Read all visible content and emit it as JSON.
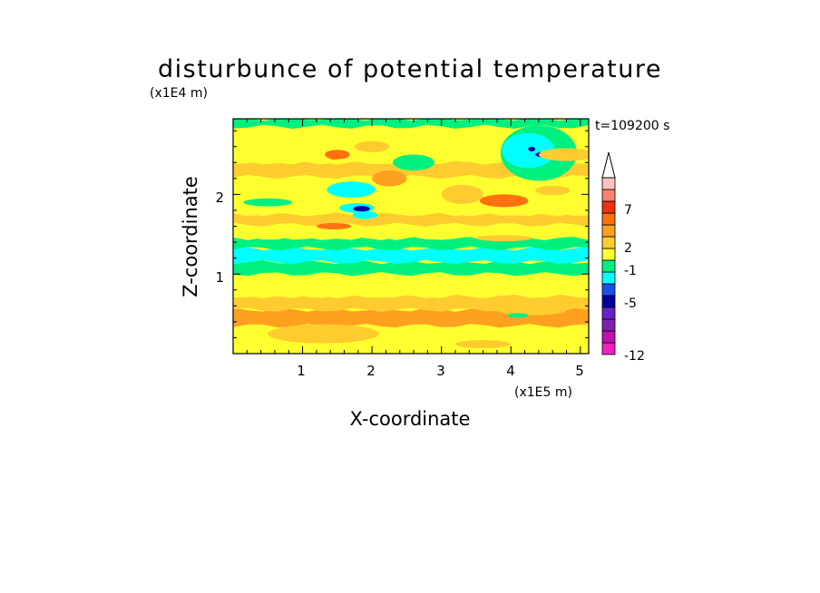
{
  "chart_data": {
    "type": "heatmap",
    "title": "disturbunce of potential temperature",
    "time_label": "t=109200 s",
    "xlabel": "X-coordinate",
    "ylabel": "Z-coordinate",
    "x_unit": "(x1E5 m)",
    "y_unit": "(x1E4 m)",
    "xlim": [
      0,
      5.12
    ],
    "ylim": [
      0,
      2.95
    ],
    "x_ticks": [
      "1",
      "2",
      "3",
      "4",
      "5"
    ],
    "y_ticks": [
      "1",
      "2"
    ],
    "colorbar": {
      "levels": [
        "-12",
        "-5",
        "-1",
        "2",
        "7"
      ],
      "colors": [
        "#f020c0",
        "#c010b0",
        "#8020b0",
        "#6a20c8",
        "#0000a0",
        "#1850e8",
        "#00ffff",
        "#00f080",
        "#ffff30",
        "#ffcc30",
        "#ffa020",
        "#ff7010",
        "#f03010",
        "#ff8070",
        "#ffc0c0"
      ],
      "extend": "max"
    },
    "bands": [
      {
        "z": 0.0,
        "value": 0.5
      },
      {
        "z": 0.06,
        "value": 1.2
      },
      {
        "z": 0.35,
        "value": 2.8
      },
      {
        "z": 0.55,
        "value": 2.3
      },
      {
        "z": 0.72,
        "value": 1.2
      },
      {
        "z": 0.9,
        "value": 0.8
      },
      {
        "z": 1.0,
        "value": -0.2
      },
      {
        "z": 1.15,
        "value": -1.3
      },
      {
        "z": 1.32,
        "value": -0.4
      },
      {
        "z": 1.45,
        "value": 0.8
      },
      {
        "z": 1.62,
        "value": 2.0
      },
      {
        "z": 1.75,
        "value": 1.0
      },
      {
        "z": 1.9,
        "value": 0.5
      },
      {
        "z": 2.08,
        "value": 1.4
      },
      {
        "z": 2.22,
        "value": 2.3
      },
      {
        "z": 2.4,
        "value": 0.5
      },
      {
        "z": 2.6,
        "value": 1.4
      },
      {
        "z": 2.75,
        "value": 0.4
      },
      {
        "z": 2.85,
        "value": -0.2
      }
    ],
    "blobs": [
      {
        "x": 1.9,
        "z": 1.74,
        "rx": 0.18,
        "rz": 0.05,
        "value": -1.5
      },
      {
        "x": 1.7,
        "z": 2.06,
        "rx": 0.35,
        "rz": 0.1,
        "value": -1.4
      },
      {
        "x": 1.78,
        "z": 1.83,
        "rx": 0.25,
        "rz": 0.06,
        "value": -1.3
      },
      {
        "x": 1.85,
        "z": 1.82,
        "rx": 0.12,
        "rz": 0.035,
        "value": -5.5
      },
      {
        "x": 1.45,
        "z": 1.6,
        "rx": 0.25,
        "rz": 0.04,
        "value": 3.2
      },
      {
        "x": 1.5,
        "z": 2.5,
        "rx": 0.18,
        "rz": 0.06,
        "value": 3.5
      },
      {
        "x": 1.45,
        "z": 2.47,
        "rx": 0.06,
        "rz": 0.035,
        "value": 4.5
      },
      {
        "x": 2.25,
        "z": 2.2,
        "rx": 0.25,
        "rz": 0.1,
        "value": 3.1
      },
      {
        "x": 2.0,
        "z": 2.6,
        "rx": 0.25,
        "rz": 0.07,
        "value": 2.1
      },
      {
        "x": 3.3,
        "z": 2.0,
        "rx": 0.3,
        "rz": 0.12,
        "value": 2.2
      },
      {
        "x": 3.9,
        "z": 1.92,
        "rx": 0.35,
        "rz": 0.08,
        "value": 3.5
      },
      {
        "x": 4.4,
        "z": 2.52,
        "rx": 0.55,
        "rz": 0.35,
        "value": -0.1
      },
      {
        "x": 4.25,
        "z": 2.55,
        "rx": 0.38,
        "rz": 0.22,
        "value": -1.3
      },
      {
        "x": 4.55,
        "z": 2.5,
        "rx": 0.2,
        "rz": 0.04,
        "value": -5.5
      },
      {
        "x": 4.3,
        "z": 2.57,
        "rx": 0.05,
        "rz": 0.03,
        "value": -5.5
      },
      {
        "x": 4.8,
        "z": 2.5,
        "rx": 0.4,
        "rz": 0.08,
        "value": 2.2
      },
      {
        "x": 3.9,
        "z": 1.45,
        "rx": 0.4,
        "rz": 0.04,
        "value": 2.2
      },
      {
        "x": 4.6,
        "z": 2.05,
        "rx": 0.25,
        "rz": 0.06,
        "value": 2.2
      },
      {
        "x": 1.3,
        "z": 0.25,
        "rx": 0.8,
        "rz": 0.12,
        "value": 2.4
      },
      {
        "x": 4.3,
        "z": 0.55,
        "rx": 0.5,
        "rz": 0.07,
        "value": 2.3
      },
      {
        "x": 4.1,
        "z": 0.48,
        "rx": 0.15,
        "rz": 0.03,
        "value": -0.2
      },
      {
        "x": 3.6,
        "z": 0.12,
        "rx": 0.4,
        "rz": 0.05,
        "value": 2.4
      },
      {
        "x": 0.5,
        "z": 1.9,
        "rx": 0.35,
        "rz": 0.05,
        "value": -0.2
      },
      {
        "x": 2.6,
        "z": 2.4,
        "rx": 0.3,
        "rz": 0.1,
        "value": -0.1
      }
    ]
  }
}
